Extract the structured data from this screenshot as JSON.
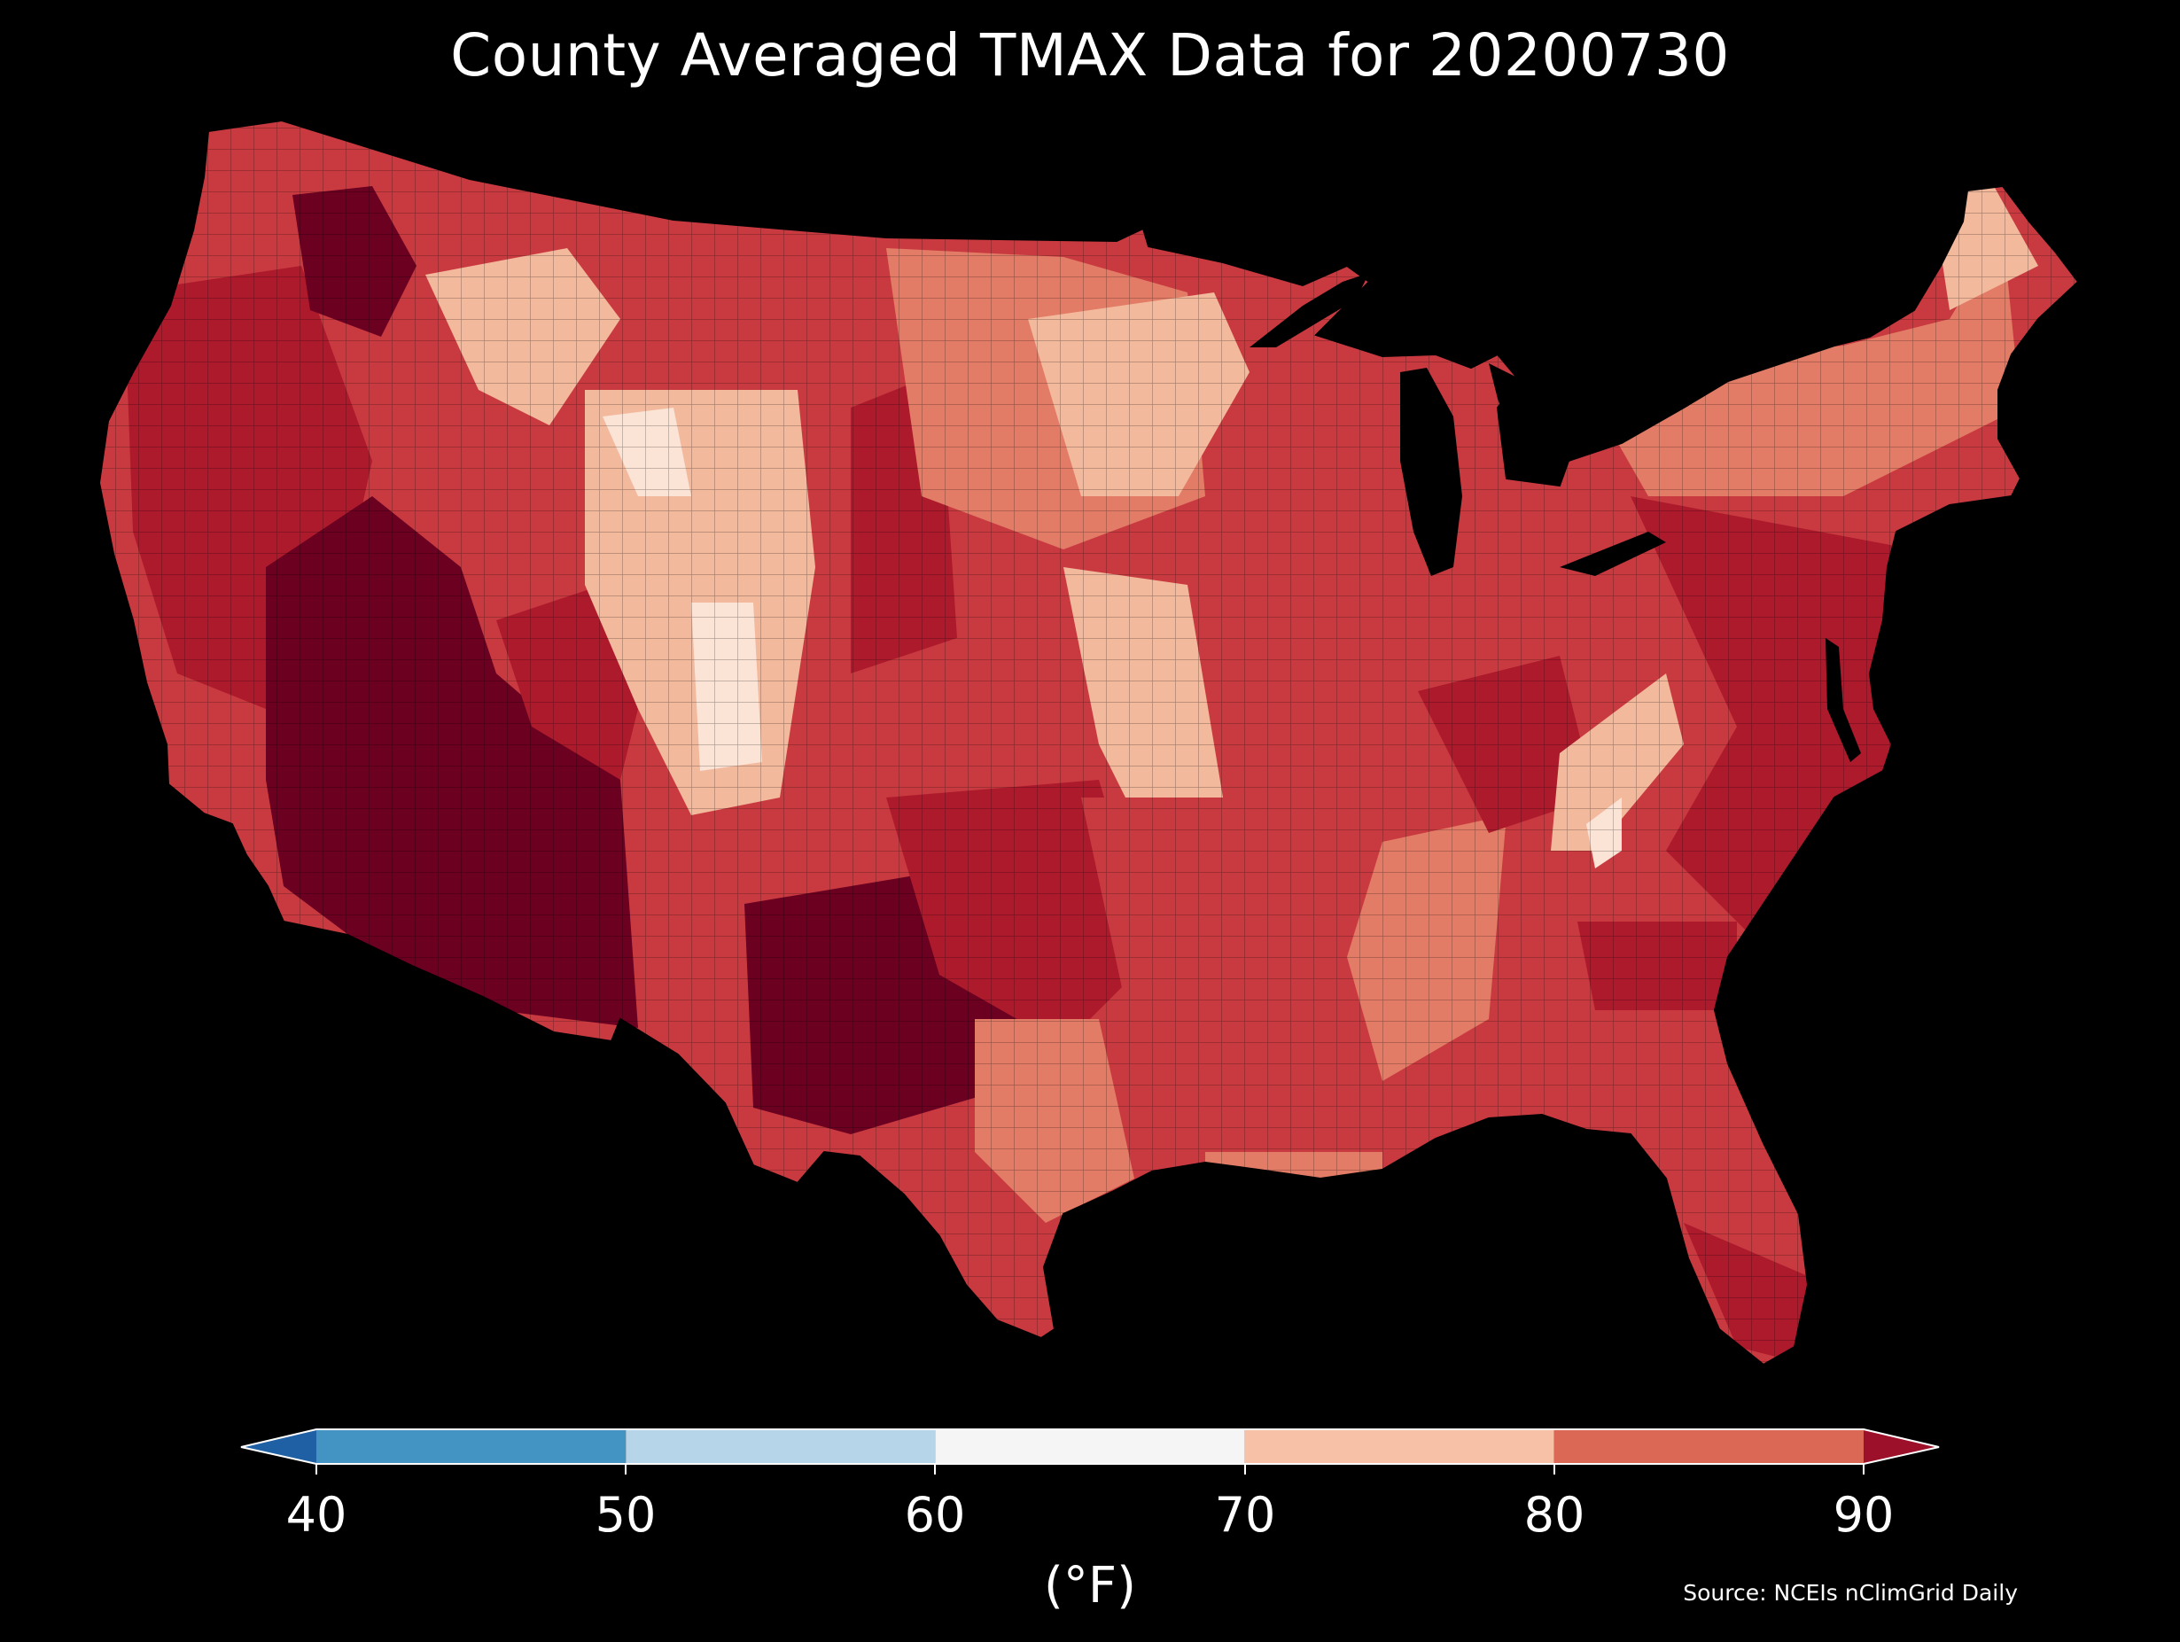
{
  "title": "County Averaged TMAX Data for 20200730",
  "colorbar": {
    "unit_label": "(°F)",
    "ticks": [
      "40",
      "50",
      "60",
      "70",
      "80",
      "90"
    ],
    "bins": [
      {
        "from": 40,
        "to": 50,
        "color": "#4393c3"
      },
      {
        "from": 50,
        "to": 60,
        "color": "#b7d5e8"
      },
      {
        "from": 60,
        "to": 70,
        "color": "#f5f5f5"
      },
      {
        "from": 70,
        "to": 80,
        "color": "#f6c1a6"
      },
      {
        "from": 80,
        "to": 90,
        "color": "#db6755"
      }
    ],
    "under_color": "#1f5fa3",
    "over_color": "#9c1129",
    "extend": "both"
  },
  "map": {
    "region": "Contiguous United States",
    "background": "#000000",
    "palette": {
      "cool": "#fbe3d6",
      "mild": "#f3b99d",
      "warm": "#e37c66",
      "hot": "#c93a40",
      "very_hot": "#ad1a2c",
      "extreme": "#6b0021"
    }
  },
  "source": "Source: NCEIs nClimGrid Daily"
}
